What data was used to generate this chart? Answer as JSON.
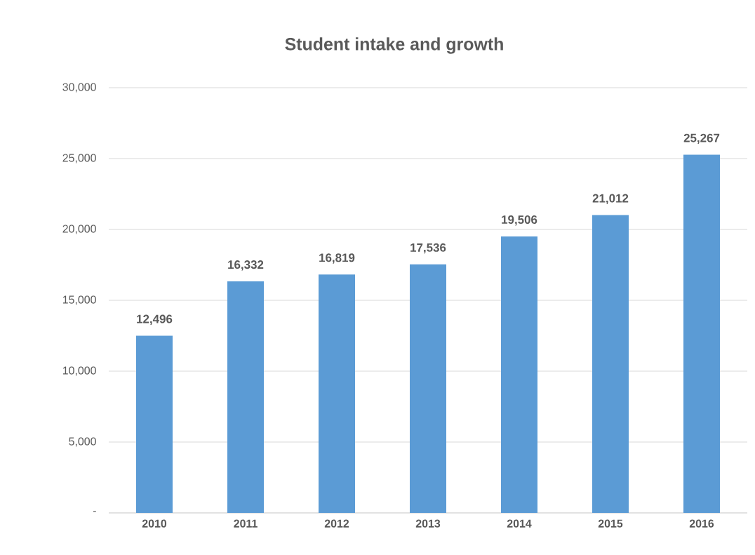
{
  "chart_data": {
    "type": "bar",
    "title": "Student intake and growth",
    "categories": [
      "2010",
      "2011",
      "2012",
      "2013",
      "2014",
      "2015",
      "2016"
    ],
    "values": [
      12496,
      16332,
      16819,
      17536,
      19506,
      21012,
      25267
    ],
    "value_labels": [
      "12,496",
      "16,332",
      "16,819",
      "17,536",
      "19,506",
      "21,012",
      "25,267"
    ],
    "color": "#5b9bd5",
    "ylim": [
      0,
      30000
    ],
    "yticks": [
      {
        "value": 0,
        "label": "-"
      },
      {
        "value": 5000,
        "label": "5,000"
      },
      {
        "value": 10000,
        "label": "10,000"
      },
      {
        "value": 15000,
        "label": "15,000"
      },
      {
        "value": 20000,
        "label": "20,000"
      },
      {
        "value": 25000,
        "label": "25,000"
      },
      {
        "value": 30000,
        "label": "30,000"
      }
    ],
    "grid": "y"
  }
}
